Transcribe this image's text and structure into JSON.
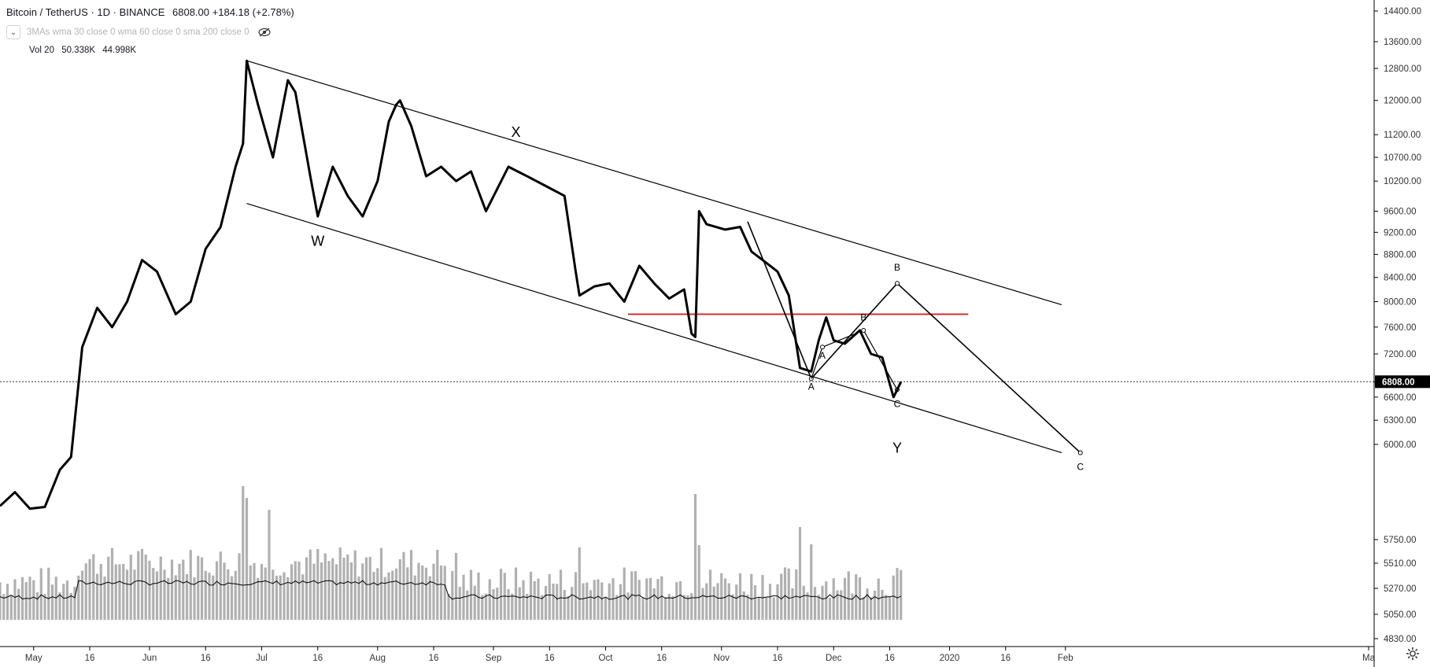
{
  "header": {
    "symbol": "Bitcoin / TetherUS",
    "interval": "1D",
    "exchange": "BINANCE",
    "last": "6808.00",
    "change": "+184.18",
    "change_pct": "(+2.78%)",
    "ma_label": "3MAs wma 30 close 0 wma 60 close 0 sma 200 close 0",
    "vol_label": "Vol 20",
    "vol_value1": "50.338K",
    "vol_value2": "44.998K"
  },
  "colors": {
    "price_line": "#000000",
    "volume_bar": "#b0b0b0",
    "red_line": "#d32f2f",
    "axis_text": "#333333",
    "grid_line": "#e0e3eb"
  },
  "icons": [
    "chevron-down-icon",
    "eye-off-icon",
    "gear-icon"
  ],
  "chart_data": {
    "type": "line",
    "title": "",
    "y_axis_labels": [
      "14400.00",
      "13600.00",
      "12800.00",
      "12000.00",
      "11200.00",
      "10700.00",
      "10200.00",
      "9600.00",
      "9200.00",
      "8800.00",
      "8400.00",
      "8000.00",
      "7600.00",
      "7200.00",
      "6800.00",
      "6600.00",
      "6300.00",
      "6000.00",
      "5750.00",
      "5510.00",
      "5270.00",
      "5050.00",
      "4830.00"
    ],
    "x_axis_labels": [
      "May",
      "16",
      "Jun",
      "16",
      "Jul",
      "16",
      "Aug",
      "16",
      "Sep",
      "16",
      "Oct",
      "16",
      "Nov",
      "16",
      "Dec",
      "16",
      "2020",
      "16",
      "Feb",
      "Ma"
    ],
    "last_price_label": "6808.00",
    "price_series": {
      "name": "BTCUSDT close",
      "x": [
        "2019-04-22",
        "2019-04-26",
        "2019-04-30",
        "2019-05-04",
        "2019-05-08",
        "2019-05-11",
        "2019-05-14",
        "2019-05-18",
        "2019-05-22",
        "2019-05-26",
        "2019-05-30",
        "2019-06-03",
        "2019-06-08",
        "2019-06-12",
        "2019-06-16",
        "2019-06-20",
        "2019-06-24",
        "2019-06-26",
        "2019-06-27",
        "2019-06-30",
        "2019-07-04",
        "2019-07-08",
        "2019-07-10",
        "2019-07-14",
        "2019-07-16",
        "2019-07-20",
        "2019-07-24",
        "2019-07-28",
        "2019-08-01",
        "2019-08-04",
        "2019-08-06",
        "2019-08-07",
        "2019-08-10",
        "2019-08-14",
        "2019-08-18",
        "2019-08-22",
        "2019-08-26",
        "2019-08-30",
        "2019-09-05",
        "2019-09-10",
        "2019-09-15",
        "2019-09-20",
        "2019-09-23",
        "2019-09-24",
        "2019-09-28",
        "2019-10-02",
        "2019-10-06",
        "2019-10-10",
        "2019-10-14",
        "2019-10-18",
        "2019-10-22",
        "2019-10-24",
        "2019-10-25",
        "2019-10-26",
        "2019-10-28",
        "2019-11-02",
        "2019-11-06",
        "2019-11-09",
        "2019-11-12",
        "2019-11-16",
        "2019-11-19",
        "2019-11-22",
        "2019-11-25",
        "2019-11-27",
        "2019-11-29",
        "2019-12-01",
        "2019-12-04",
        "2019-12-08",
        "2019-12-11",
        "2019-12-14",
        "2019-12-17",
        "2019-12-18",
        "2019-12-19"
      ],
      "y": [
        5300,
        5450,
        5270,
        5290,
        5700,
        5850,
        7300,
        7900,
        7600,
        8000,
        8700,
        8500,
        7800,
        8000,
        8900,
        9300,
        10500,
        11000,
        13000,
        11900,
        10700,
        12500,
        12200,
        10300,
        9500,
        10500,
        9900,
        9500,
        10200,
        11500,
        11900,
        12000,
        11400,
        10300,
        10500,
        10200,
        10400,
        9600,
        10500,
        10300,
        10100,
        9900,
        8500,
        8100,
        8250,
        8300,
        8000,
        8600,
        8300,
        8050,
        8200,
        7500,
        7450,
        9600,
        9350,
        9250,
        9300,
        8850,
        8700,
        8500,
        8100,
        7000,
        6950,
        7400,
        7750,
        7400,
        7350,
        7550,
        7200,
        7150,
        6600,
        6700,
        6808
      ]
    },
    "annotations": [
      "W",
      "X",
      "Y",
      "A",
      "B",
      "C",
      "A",
      "B",
      "C",
      "B",
      "C"
    ],
    "trend_lines": [
      {
        "name": "channel-upper",
        "x": [
          "2019-06-27",
          "2020-01-31"
        ],
        "y": [
          13000,
          7950
        ]
      },
      {
        "name": "channel-lower",
        "x": [
          "2019-06-27",
          "2020-01-31"
        ],
        "y": [
          9750,
          5900
        ]
      },
      {
        "name": "red-horizontal",
        "x": [
          "2019-10-07",
          "2020-01-06"
        ],
        "y": [
          7800,
          7800
        ]
      }
    ],
    "wave_paths": [
      {
        "name": "big-abc",
        "x": [
          "2019-11-08",
          "2019-11-25",
          "2019-12-18",
          "2020-02-05"
        ],
        "y": [
          9400,
          6850,
          8300,
          5900
        ]
      },
      {
        "name": "small-abc",
        "x": [
          "2019-11-25",
          "2019-11-28",
          "2019-12-09",
          "2019-12-18"
        ],
        "y": [
          6850,
          7300,
          7550,
          6700
        ]
      }
    ],
    "volume_series": {
      "name": "Vol 20",
      "ma_label": "44.998K"
    }
  }
}
